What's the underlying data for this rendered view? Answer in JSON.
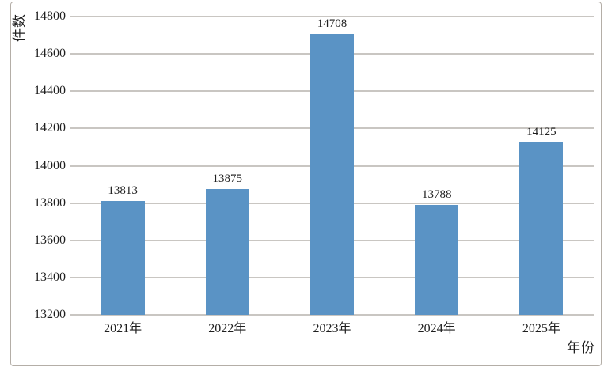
{
  "chart_data": {
    "type": "bar",
    "categories": [
      "2021年",
      "2022年",
      "2023年",
      "2024年",
      "2025年"
    ],
    "values": [
      13813,
      13875,
      14708,
      13788,
      14125
    ],
    "xlabel": "年份",
    "ylabel": "件数",
    "ylim": [
      13200,
      14800
    ],
    "ytick_step": 200,
    "yticks": [
      14800,
      14600,
      14400,
      14200,
      14000,
      13800,
      13600,
      13400,
      13200
    ],
    "grid": true,
    "legend": false,
    "bar_color": "#5a93c5",
    "gridline_color": "#c9c6c2",
    "text_color": "#1f1f1f",
    "frame_border_color": "#b4aea7"
  }
}
